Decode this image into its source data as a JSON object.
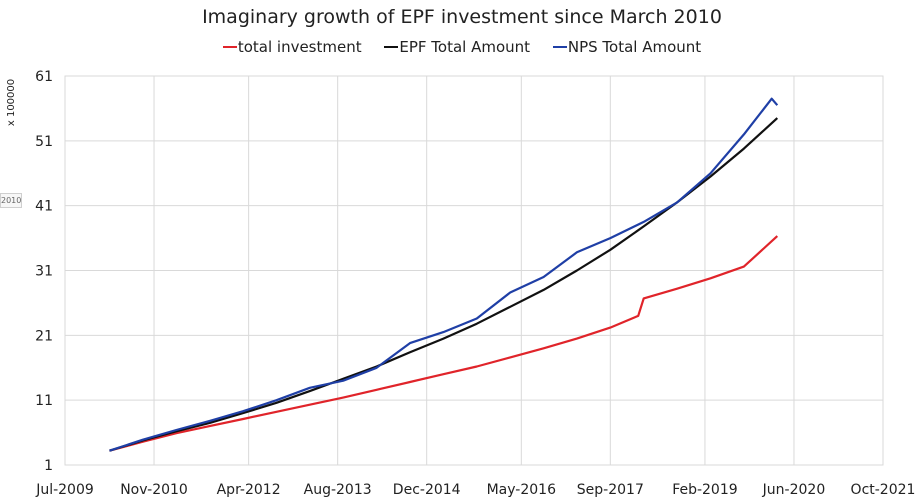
{
  "chart_data": {
    "type": "line",
    "title": "Imaginary growth of EPF investment since March 2010",
    "y_multiplier_label": "x 100000",
    "stray_label": "2010",
    "x_axis": {
      "type": "date",
      "range": [
        "2009-07",
        "2021-10"
      ],
      "tick_labels": [
        "Jul-2009",
        "Nov-2010",
        "Apr-2012",
        "Aug-2013",
        "Dec-2014",
        "May-2016",
        "Sep-2017",
        "Feb-2019",
        "Jun-2020",
        "Oct-2021"
      ]
    },
    "y_axis": {
      "range": [
        1,
        61
      ],
      "tick_labels": [
        "1",
        "11",
        "21",
        "31",
        "41",
        "51",
        "61"
      ]
    },
    "grid": true,
    "legend_position": "top",
    "series": [
      {
        "name": "total investment",
        "color": "#e0242a",
        "x": [
          "2010-03",
          "2010-09",
          "2011-03",
          "2011-09",
          "2012-03",
          "2012-09",
          "2013-03",
          "2013-09",
          "2014-03",
          "2014-09",
          "2015-03",
          "2015-09",
          "2016-03",
          "2016-09",
          "2017-03",
          "2017-09",
          "2018-02",
          "2018-03",
          "2018-09",
          "2019-03",
          "2019-09",
          "2020-03"
        ],
        "values": [
          3.2,
          4.6,
          5.9,
          7.0,
          8.1,
          9.2,
          10.3,
          11.4,
          12.6,
          13.8,
          15.0,
          16.2,
          17.6,
          19.0,
          20.5,
          22.2,
          24.0,
          26.7,
          28.2,
          29.8,
          31.6,
          36.3
        ]
      },
      {
        "name": "EPF Total Amount",
        "color": "#111111",
        "x": [
          "2010-03",
          "2010-09",
          "2011-03",
          "2011-09",
          "2012-03",
          "2012-09",
          "2013-03",
          "2013-09",
          "2014-03",
          "2014-09",
          "2015-03",
          "2015-09",
          "2016-03",
          "2016-09",
          "2017-03",
          "2017-09",
          "2018-03",
          "2018-09",
          "2019-03",
          "2019-09",
          "2020-03"
        ],
        "values": [
          3.2,
          4.8,
          6.2,
          7.5,
          9.0,
          10.6,
          12.4,
          14.3,
          16.2,
          18.4,
          20.5,
          22.8,
          25.4,
          28.0,
          31.0,
          34.2,
          37.8,
          41.5,
          45.5,
          49.8,
          54.5
        ]
      },
      {
        "name": "NPS Total Amount",
        "color": "#1f3fa6",
        "x": [
          "2010-03",
          "2010-09",
          "2011-03",
          "2011-09",
          "2012-03",
          "2012-09",
          "2013-03",
          "2013-09",
          "2014-03",
          "2014-09",
          "2015-03",
          "2015-09",
          "2016-03",
          "2016-09",
          "2017-03",
          "2017-09",
          "2018-03",
          "2018-09",
          "2019-03",
          "2019-09",
          "2020-02",
          "2020-03"
        ],
        "values": [
          3.2,
          4.9,
          6.4,
          7.8,
          9.3,
          11.0,
          12.9,
          14.0,
          16.0,
          19.8,
          21.5,
          23.6,
          27.6,
          30.0,
          33.8,
          36.0,
          38.5,
          41.5,
          46.0,
          52.0,
          57.5,
          56.5
        ]
      }
    ]
  }
}
